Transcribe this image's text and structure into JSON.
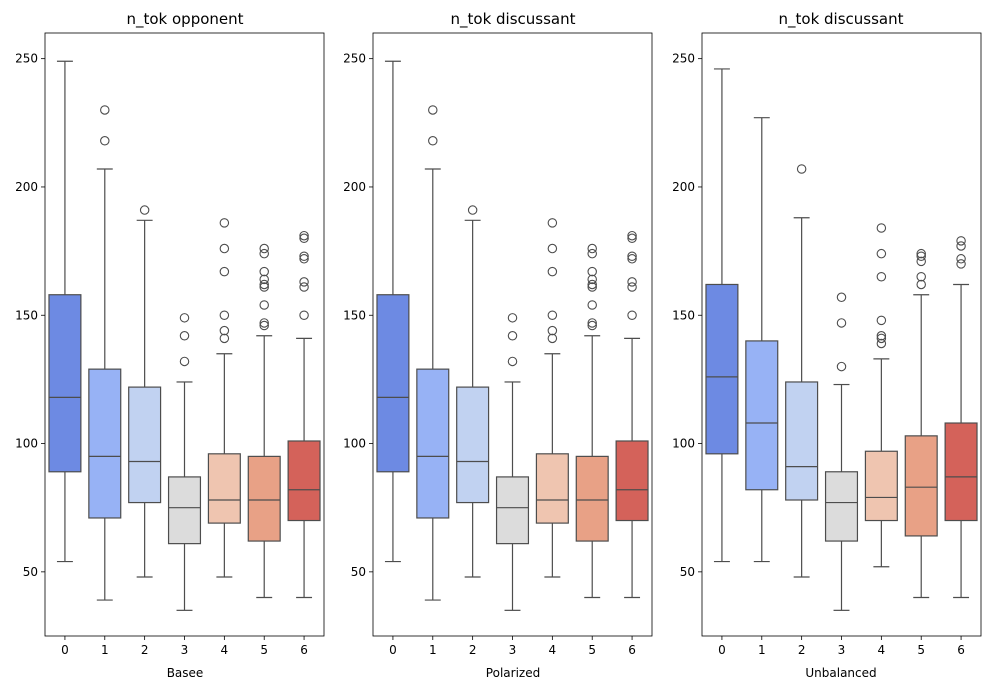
{
  "chart_data": [
    {
      "type": "box",
      "title": "n_tok opponent",
      "xlabel": "Basee",
      "ylabel": "",
      "categories": [
        "0",
        "1",
        "2",
        "3",
        "4",
        "5",
        "6"
      ],
      "ylim": [
        25,
        260
      ],
      "yticks": [
        50,
        100,
        150,
        200,
        250
      ],
      "boxes": [
        {
          "whisker_low": 54,
          "q1": 89,
          "median": 118,
          "q3": 158,
          "whisker_high": 249,
          "outliers": []
        },
        {
          "whisker_low": 39,
          "q1": 71,
          "median": 95,
          "q3": 129,
          "whisker_high": 207,
          "outliers": [
            218,
            230
          ]
        },
        {
          "whisker_low": 48,
          "q1": 77,
          "median": 93,
          "q3": 122,
          "whisker_high": 187,
          "outliers": [
            191
          ]
        },
        {
          "whisker_low": 35,
          "q1": 61,
          "median": 75,
          "q3": 87,
          "whisker_high": 124,
          "outliers": [
            132,
            142,
            149
          ]
        },
        {
          "whisker_low": 48,
          "q1": 69,
          "median": 78,
          "q3": 96,
          "whisker_high": 135,
          "outliers": [
            141,
            144,
            150,
            167,
            176,
            186
          ]
        },
        {
          "whisker_low": 40,
          "q1": 62,
          "median": 78,
          "q3": 95,
          "whisker_high": 142,
          "outliers": [
            146,
            147,
            154,
            161,
            162,
            164,
            167,
            174,
            176
          ]
        },
        {
          "whisker_low": 40,
          "q1": 70,
          "median": 82,
          "q3": 101,
          "whisker_high": 141,
          "outliers": [
            150,
            161,
            163,
            172,
            173,
            180,
            181
          ]
        }
      ]
    },
    {
      "type": "box",
      "title": "n_tok discussant",
      "xlabel": "Polarized",
      "ylabel": "",
      "categories": [
        "0",
        "1",
        "2",
        "3",
        "4",
        "5",
        "6"
      ],
      "ylim": [
        25,
        260
      ],
      "yticks": [
        50,
        100,
        150,
        200,
        250
      ],
      "boxes": [
        {
          "whisker_low": 54,
          "q1": 89,
          "median": 118,
          "q3": 158,
          "whisker_high": 249,
          "outliers": []
        },
        {
          "whisker_low": 39,
          "q1": 71,
          "median": 95,
          "q3": 129,
          "whisker_high": 207,
          "outliers": [
            218,
            230
          ]
        },
        {
          "whisker_low": 48,
          "q1": 77,
          "median": 93,
          "q3": 122,
          "whisker_high": 187,
          "outliers": [
            191
          ]
        },
        {
          "whisker_low": 35,
          "q1": 61,
          "median": 75,
          "q3": 87,
          "whisker_high": 124,
          "outliers": [
            132,
            142,
            149
          ]
        },
        {
          "whisker_low": 48,
          "q1": 69,
          "median": 78,
          "q3": 96,
          "whisker_high": 135,
          "outliers": [
            141,
            144,
            150,
            167,
            176,
            186
          ]
        },
        {
          "whisker_low": 40,
          "q1": 62,
          "median": 78,
          "q3": 95,
          "whisker_high": 142,
          "outliers": [
            146,
            147,
            154,
            161,
            162,
            164,
            167,
            174,
            176
          ]
        },
        {
          "whisker_low": 40,
          "q1": 70,
          "median": 82,
          "q3": 101,
          "whisker_high": 141,
          "outliers": [
            150,
            161,
            163,
            172,
            173,
            180,
            181
          ]
        }
      ]
    },
    {
      "type": "box",
      "title": "n_tok discussant",
      "xlabel": "Unbalanced",
      "ylabel": "",
      "categories": [
        "0",
        "1",
        "2",
        "3",
        "4",
        "5",
        "6"
      ],
      "ylim": [
        25,
        260
      ],
      "yticks": [
        50,
        100,
        150,
        200,
        250
      ],
      "boxes": [
        {
          "whisker_low": 54,
          "q1": 96,
          "median": 126,
          "q3": 162,
          "whisker_high": 246,
          "outliers": []
        },
        {
          "whisker_low": 54,
          "q1": 82,
          "median": 108,
          "q3": 140,
          "whisker_high": 227,
          "outliers": []
        },
        {
          "whisker_low": 48,
          "q1": 78,
          "median": 91,
          "q3": 124,
          "whisker_high": 188,
          "outliers": [
            207
          ]
        },
        {
          "whisker_low": 35,
          "q1": 62,
          "median": 77,
          "q3": 89,
          "whisker_high": 123,
          "outliers": [
            130,
            147,
            157
          ]
        },
        {
          "whisker_low": 52,
          "q1": 70,
          "median": 79,
          "q3": 97,
          "whisker_high": 133,
          "outliers": [
            139,
            141,
            142,
            148,
            165,
            174,
            184
          ]
        },
        {
          "whisker_low": 40,
          "q1": 64,
          "median": 83,
          "q3": 103,
          "whisker_high": 158,
          "outliers": [
            162,
            165,
            171,
            173,
            174
          ]
        },
        {
          "whisker_low": 40,
          "q1": 70,
          "median": 87,
          "q3": 108,
          "whisker_high": 162,
          "outliers": [
            170,
            172,
            177,
            179
          ]
        }
      ]
    }
  ],
  "colors": [
    "#6d8ae3",
    "#97b2f5",
    "#c1d2f1",
    "#dcdcdc",
    "#efc5b0",
    "#e8a186",
    "#d4625a"
  ],
  "line_color": "#4d4d4d"
}
